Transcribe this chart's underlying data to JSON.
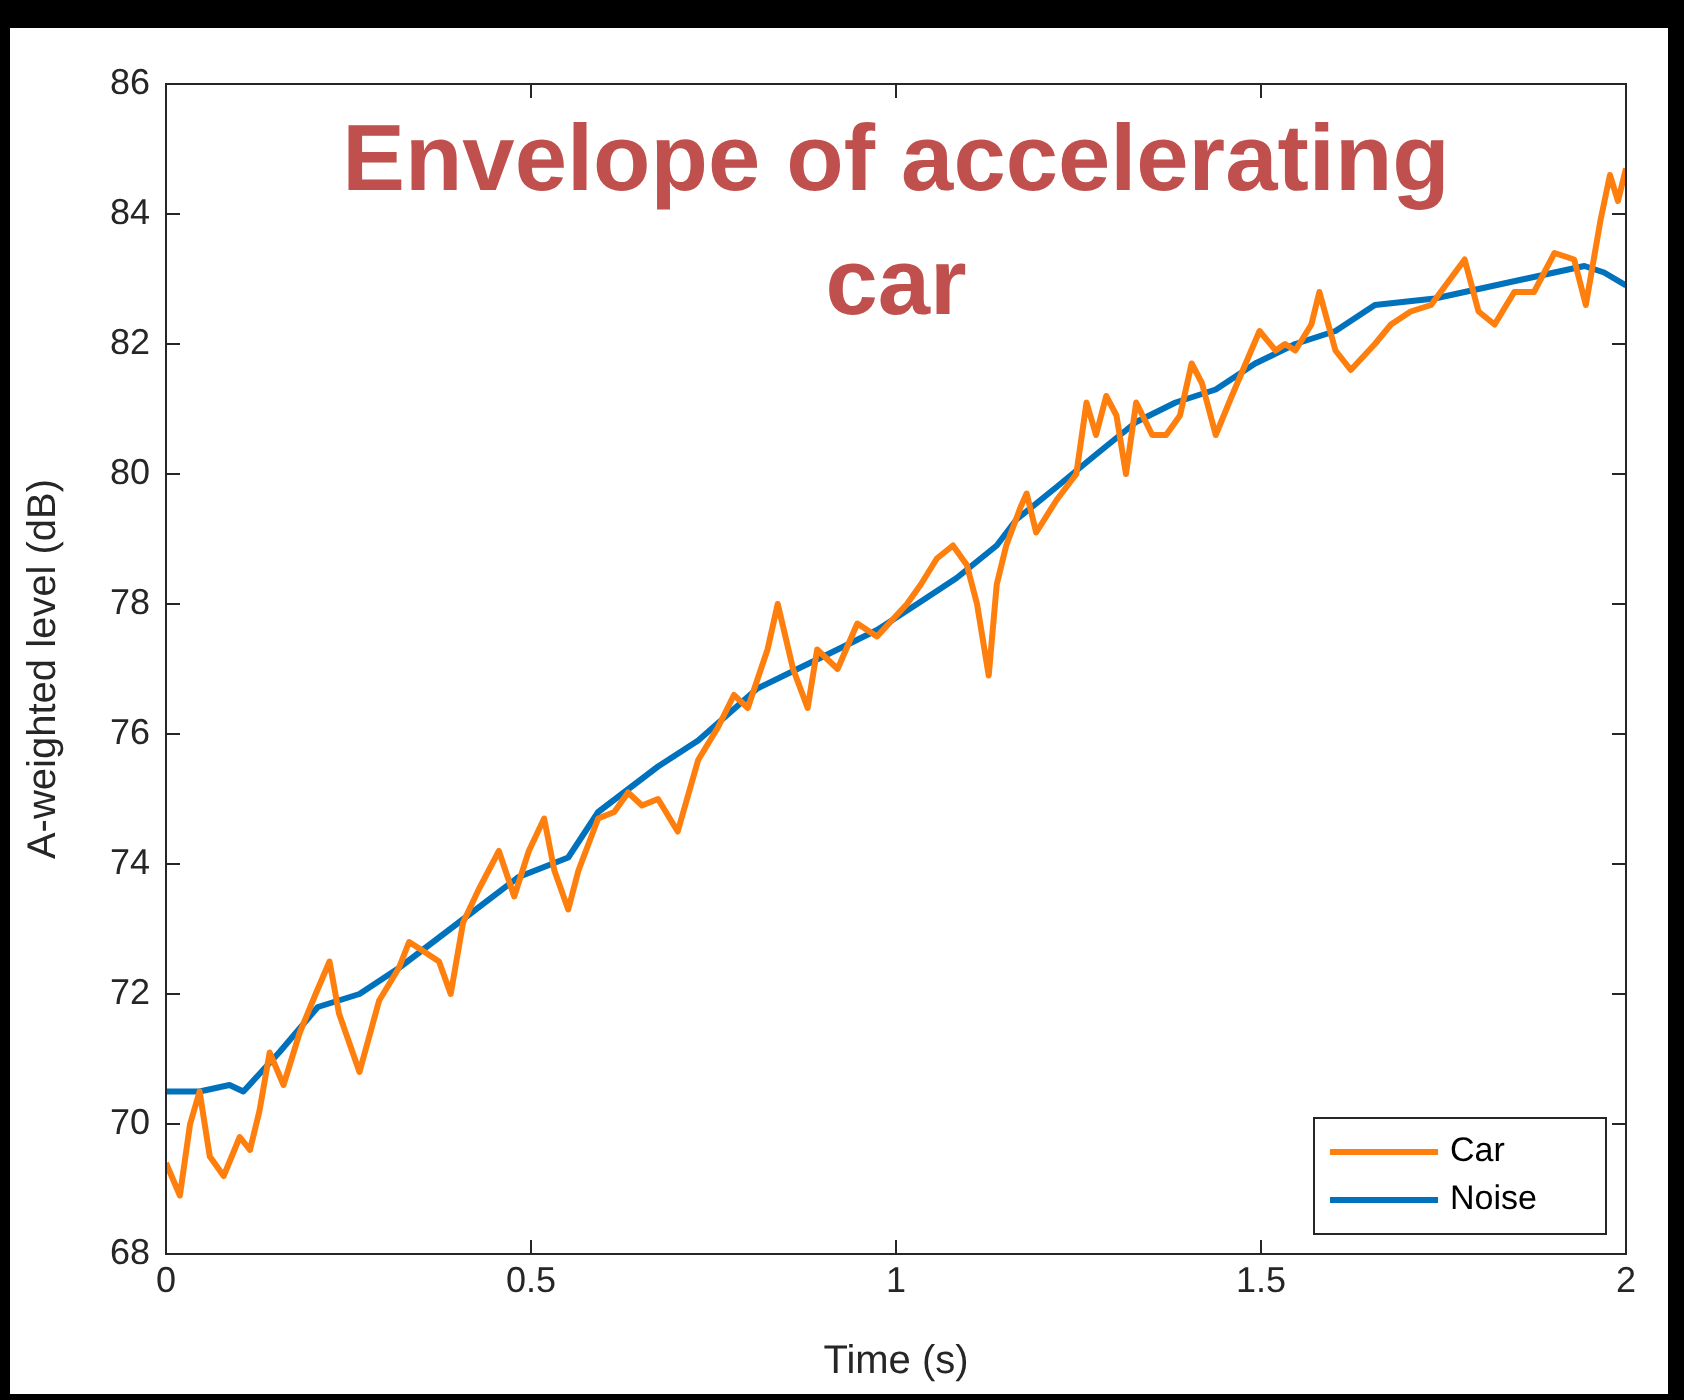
{
  "chart_data": {
    "type": "line",
    "title": "Envelope of accelerating car",
    "xlabel": "Time (s)",
    "ylabel": "A-weighted level (dB)",
    "xlim": [
      0,
      2
    ],
    "xticks": [
      0,
      0.5,
      1,
      1.5,
      2
    ],
    "ylim": [
      68,
      86
    ],
    "yticks": [
      68,
      70,
      72,
      74,
      76,
      78,
      80,
      82,
      84,
      86
    ],
    "grid": false,
    "legend": "bottom right",
    "marker": "none",
    "line_style": "solid",
    "series": [
      {
        "name": "Car",
        "color": "#ff7f0e",
        "x": [
          0,
          0.019,
          0.033,
          0.046,
          0.06,
          0.079,
          0.101,
          0.115,
          0.128,
          0.142,
          0.161,
          0.183,
          0.205,
          0.224,
          0.237,
          0.265,
          0.292,
          0.319,
          0.333,
          0.347,
          0.374,
          0.39,
          0.407,
          0.428,
          0.456,
          0.477,
          0.497,
          0.518,
          0.532,
          0.551,
          0.565,
          0.592,
          0.614,
          0.633,
          0.652,
          0.674,
          0.701,
          0.729,
          0.756,
          0.778,
          0.797,
          0.824,
          0.838,
          0.859,
          0.879,
          0.892,
          0.92,
          0.947,
          0.974,
          1.015,
          1.034,
          1.056,
          1.078,
          1.097,
          1.111,
          1.127,
          1.138,
          1.151,
          1.171,
          1.179,
          1.192,
          1.22,
          1.247,
          1.261,
          1.274,
          1.288,
          1.302,
          1.315,
          1.329,
          1.351,
          1.37,
          1.389,
          1.405,
          1.419,
          1.438,
          1.46,
          1.479,
          1.498,
          1.52,
          1.533,
          1.547,
          1.569,
          1.58,
          1.602,
          1.623,
          1.656,
          1.678,
          1.705,
          1.733,
          1.779,
          1.798,
          1.82,
          1.847,
          1.874,
          1.902,
          1.929,
          1.945,
          1.965,
          1.978,
          1.989,
          2
        ],
        "values": [
          69.4,
          68.9,
          70.0,
          70.5,
          69.5,
          69.2,
          69.8,
          69.6,
          70.2,
          71.1,
          70.6,
          71.4,
          72.0,
          72.5,
          71.7,
          70.8,
          71.9,
          72.4,
          72.8,
          72.7,
          72.5,
          72.0,
          73.1,
          73.6,
          74.2,
          73.5,
          74.2,
          74.7,
          73.9,
          73.3,
          73.9,
          74.7,
          74.8,
          75.1,
          74.9,
          75.0,
          74.5,
          75.6,
          76.1,
          76.6,
          76.4,
          77.3,
          78.0,
          77.0,
          76.4,
          77.3,
          77.0,
          77.7,
          77.5,
          78.0,
          78.3,
          78.7,
          78.9,
          78.6,
          78.0,
          76.9,
          78.3,
          78.9,
          79.5,
          79.7,
          79.1,
          79.6,
          80.0,
          81.1,
          80.6,
          81.2,
          80.9,
          80.0,
          81.1,
          80.6,
          80.6,
          80.9,
          81.7,
          81.4,
          80.6,
          81.2,
          81.7,
          82.2,
          81.9,
          82.0,
          81.9,
          82.3,
          82.8,
          81.9,
          81.6,
          82.0,
          82.3,
          82.5,
          82.6,
          83.3,
          82.5,
          82.3,
          82.8,
          82.8,
          83.4,
          83.3,
          82.6,
          83.9,
          84.6,
          84.2,
          84.7
        ]
      },
      {
        "name": "Noise",
        "color": "#0072bd",
        "x": [
          0,
          0.046,
          0.087,
          0.106,
          0.155,
          0.208,
          0.265,
          0.319,
          0.401,
          0.483,
          0.551,
          0.592,
          0.674,
          0.729,
          0.81,
          0.865,
          0.92,
          0.974,
          1.029,
          1.083,
          1.138,
          1.165,
          1.22,
          1.274,
          1.329,
          1.383,
          1.438,
          1.492,
          1.547,
          1.602,
          1.656,
          1.738,
          1.82,
          1.902,
          1.943,
          1.97,
          2
        ],
        "values": [
          70.5,
          70.5,
          70.6,
          70.5,
          71.1,
          71.8,
          72.0,
          72.4,
          73.1,
          73.8,
          74.1,
          74.8,
          75.5,
          75.9,
          76.7,
          77.0,
          77.3,
          77.6,
          78.0,
          78.4,
          78.9,
          79.3,
          79.8,
          80.3,
          80.8,
          81.1,
          81.3,
          81.7,
          82.0,
          82.2,
          82.6,
          82.7,
          82.9,
          83.1,
          83.2,
          83.1,
          82.9
        ]
      }
    ]
  }
}
